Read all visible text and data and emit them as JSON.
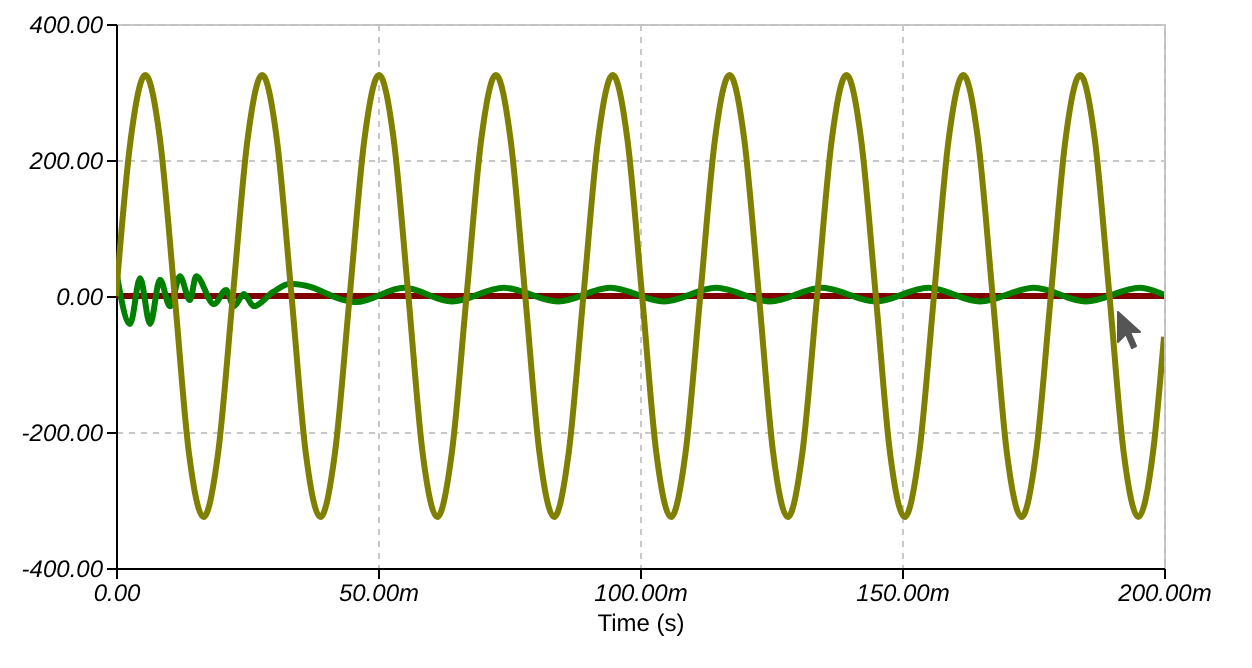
{
  "chart_data": {
    "type": "line",
    "xlabel": "Time (s)",
    "xlim": [
      0,
      200
    ],
    "ylim": [
      -400,
      400
    ],
    "xticks": [
      {
        "value": 0,
        "label": "0.00"
      },
      {
        "value": 50,
        "label": "50.00m"
      },
      {
        "value": 100,
        "label": "100.00m"
      },
      {
        "value": 150,
        "label": "150.00m"
      },
      {
        "value": 200,
        "label": "200.00m"
      }
    ],
    "yticks": [
      {
        "value": -400,
        "label": "-400.00"
      },
      {
        "value": -200,
        "label": "-200.00"
      },
      {
        "value": 0,
        "label": "0.00"
      },
      {
        "value": 200,
        "label": "200.00"
      },
      {
        "value": 400,
        "label": "400.00"
      }
    ],
    "grid": true,
    "series": [
      {
        "color": "#800000",
        "x": [
          0,
          200
        ],
        "values": [
          0,
          0
        ]
      },
      {
        "color": "#008000",
        "x": [
          0,
          2.7,
          4.6,
          6.5,
          8.4,
          10.3,
          12.2,
          14.1,
          15.3,
          18.7,
          21,
          22.5,
          24.4,
          26.3,
          30,
          33.2,
          36.3,
          43.5,
          45.8,
          55,
          64.1,
          74,
          84.4,
          94.3,
          104.6,
          114.5,
          124.8,
          134.7,
          145,
          155,
          164.9,
          175.2,
          185.1,
          195.4,
          200
        ],
        "values": [
          38,
          -41,
          26,
          -41,
          24,
          -15,
          29,
          -6,
          29,
          -12,
          9,
          -15,
          3,
          -15,
          6,
          18,
          15,
          -6,
          -9,
          12,
          -8,
          12,
          -8,
          12,
          -8,
          12,
          -8,
          12,
          -8,
          12,
          -8,
          12,
          -8,
          12,
          2
        ]
      },
      {
        "color": "#808000",
        "x": [
          0,
          2.8,
          5.6,
          8.4,
          11.2,
          13.9,
          16.7,
          19.5,
          22.3,
          25.1,
          27.9,
          30.7,
          33.5,
          36.2,
          39,
          41.8,
          44.6,
          47.4,
          50.2,
          53,
          55.8,
          58.5,
          61.3,
          64.1,
          66.9,
          69.7,
          72.5,
          75.3,
          78.1,
          80.8,
          83.6,
          86.4,
          89.2,
          92,
          94.8,
          97.6,
          100.4,
          103.1,
          105.9,
          108.7,
          111.5,
          114.3,
          117.1,
          119.9,
          122.7,
          125.4,
          128.2,
          131,
          133.8,
          136.6,
          139.4,
          142.2,
          145,
          147.7,
          150.5,
          153.3,
          156.1,
          158.9,
          161.7,
          164.5,
          167.3,
          170,
          172.8,
          175.6,
          178.4,
          181.2,
          184,
          186.8,
          189.6,
          192.3,
          195.1,
          197.9,
          200
        ],
        "values": [
          0,
          230,
          325,
          230,
          0,
          -230,
          -325,
          -230,
          0,
          230,
          325,
          230,
          0,
          -230,
          -325,
          -230,
          0,
          230,
          325,
          230,
          0,
          -230,
          -325,
          -230,
          0,
          230,
          325,
          230,
          0,
          -230,
          -325,
          -230,
          0,
          230,
          325,
          230,
          0,
          -230,
          -325,
          -230,
          0,
          230,
          325,
          230,
          0,
          -230,
          -325,
          -230,
          0,
          230,
          325,
          230,
          0,
          -230,
          -325,
          -230,
          0,
          230,
          325,
          230,
          0,
          -230,
          -325,
          -230,
          0,
          230,
          325,
          230,
          0,
          -230,
          -325,
          -230,
          -60
        ]
      }
    ]
  }
}
